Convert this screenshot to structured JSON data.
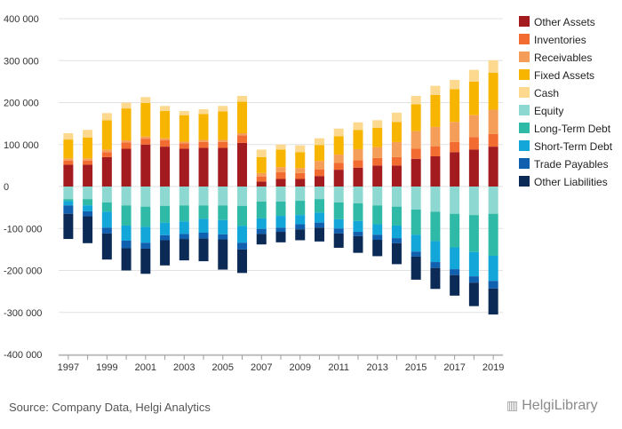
{
  "chart_data": {
    "type": "bar",
    "stacked": true,
    "categories": [
      "1997",
      "1998",
      "1999",
      "2000",
      "2001",
      "2002",
      "2003",
      "2004",
      "2005",
      "2006",
      "2007",
      "2008",
      "2009",
      "2010",
      "2011",
      "2012",
      "2013",
      "2014",
      "2015",
      "2016",
      "2017",
      "2018",
      "2019"
    ],
    "xtick_labels": [
      "1997",
      "1999",
      "2001",
      "2003",
      "2005",
      "2007",
      "2009",
      "2011",
      "2013",
      "2015",
      "2017",
      "2019"
    ],
    "ylim": [
      -400000,
      400000
    ],
    "yticks": [
      400000,
      300000,
      200000,
      100000,
      0,
      -100000,
      -200000,
      -300000,
      -400000
    ],
    "ytick_labels": [
      "400 000",
      "300 000",
      "200 000",
      "100 000",
      "0",
      "-100 000",
      "-200 000",
      "-300 000",
      "-400 000"
    ],
    "grid": true,
    "legend_position": "right",
    "series": [
      {
        "name": "Other Assets",
        "color": "#a31a1f",
        "group": "assets",
        "values": [
          52000,
          52000,
          70000,
          90000,
          100000,
          95000,
          90000,
          92000,
          92000,
          104000,
          12000,
          18000,
          18000,
          25000,
          40000,
          45000,
          50000,
          50000,
          66000,
          72000,
          82000,
          88000,
          95000
        ]
      },
      {
        "name": "Inventories",
        "color": "#f26b30",
        "group": "assets",
        "values": [
          10000,
          10000,
          12000,
          15000,
          14000,
          15000,
          13000,
          14000,
          14000,
          18000,
          12000,
          16000,
          14000,
          16000,
          16000,
          18000,
          18000,
          20000,
          24000,
          24000,
          24000,
          30000,
          30000
        ]
      },
      {
        "name": "Receivables",
        "color": "#f59e5a",
        "group": "assets",
        "values": [
          5000,
          5000,
          6000,
          5000,
          5000,
          5000,
          4000,
          5000,
          5000,
          5000,
          8000,
          12000,
          12000,
          20000,
          20000,
          26000,
          26000,
          36000,
          42000,
          46000,
          48000,
          52000,
          58000
        ]
      },
      {
        "name": "Fixed Assets",
        "color": "#f7b500",
        "group": "assets",
        "values": [
          45000,
          50000,
          70000,
          76000,
          80000,
          65000,
          63000,
          62000,
          68000,
          75000,
          38000,
          42000,
          38000,
          38000,
          44000,
          46000,
          46000,
          48000,
          64000,
          76000,
          78000,
          80000,
          88000
        ]
      },
      {
        "name": "Cash",
        "color": "#fcd98e",
        "group": "assets",
        "values": [
          15000,
          18000,
          17000,
          14000,
          14000,
          12000,
          10000,
          11000,
          13000,
          14000,
          18000,
          12000,
          16000,
          16000,
          18000,
          18000,
          18000,
          22000,
          20000,
          22000,
          22000,
          28000,
          30000
        ]
      },
      {
        "name": "Equity",
        "color": "#8dd9d2",
        "group": "liabilities",
        "values": [
          30000,
          30000,
          38000,
          45000,
          48000,
          46000,
          45000,
          45000,
          45000,
          46000,
          36000,
          36000,
          34000,
          30000,
          38000,
          40000,
          45000,
          48000,
          55000,
          60000,
          65000,
          68000,
          65000
        ]
      },
      {
        "name": "Long-Term Debt",
        "color": "#2ebaa6",
        "group": "liabilities",
        "values": [
          5000,
          15000,
          22000,
          48000,
          48000,
          40000,
          38000,
          32000,
          35000,
          48000,
          40000,
          34000,
          34000,
          32000,
          40000,
          42000,
          45000,
          45000,
          60000,
          70000,
          80000,
          88000,
          100000
        ]
      },
      {
        "name": "Short-Term Debt",
        "color": "#12a7d8",
        "group": "liabilities",
        "values": [
          10000,
          14000,
          38000,
          36000,
          38000,
          30000,
          30000,
          33000,
          34000,
          40000,
          25000,
          28000,
          22000,
          24000,
          22000,
          26000,
          25000,
          30000,
          40000,
          50000,
          52000,
          58000,
          60000
        ]
      },
      {
        "name": "Trade Payables",
        "color": "#1160b0",
        "group": "liabilities",
        "values": [
          20000,
          12000,
          14000,
          18000,
          14000,
          12000,
          12000,
          14000,
          12000,
          16000,
          12000,
          10000,
          12000,
          12000,
          12000,
          10000,
          12000,
          12000,
          12000,
          14000,
          14000,
          15000,
          18000
        ]
      },
      {
        "name": "Other Liabilities",
        "color": "#0b2b56",
        "group": "liabilities",
        "values": [
          60000,
          64000,
          62000,
          53000,
          60000,
          60000,
          51000,
          54000,
          72000,
          56000,
          25000,
          25000,
          26000,
          33000,
          34000,
          40000,
          39000,
          50000,
          55000,
          50000,
          49000,
          56000,
          62000
        ]
      }
    ]
  },
  "footer": {
    "source": "Source: Company Data, Helgi Analytics",
    "logo_text": "HelgiLibrary"
  }
}
